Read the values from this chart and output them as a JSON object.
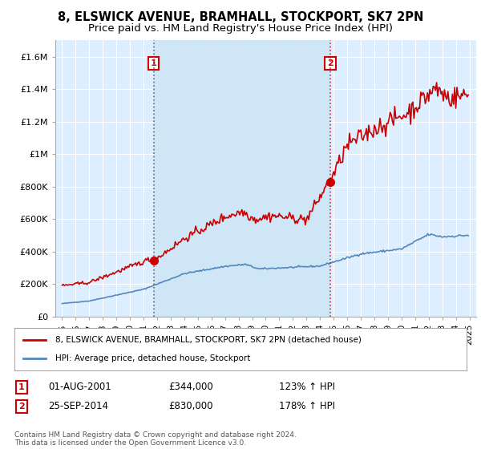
{
  "title": "8, ELSWICK AVENUE, BRAMHALL, STOCKPORT, SK7 2PN",
  "subtitle": "Price paid vs. HM Land Registry's House Price Index (HPI)",
  "title_fontsize": 10.5,
  "subtitle_fontsize": 9.5,
  "background_color": "#ffffff",
  "plot_bg_color": "#ddeeff",
  "grid_color": "#ffffff",
  "sale1_date": 2001.75,
  "sale1_price": 344000,
  "sale1_label": "1",
  "sale2_date": 2014.75,
  "sale2_price": 830000,
  "sale2_label": "2",
  "red_line_color": "#cc0000",
  "blue_line_color": "#5588bb",
  "marker_color": "#cc0000",
  "shade_color": "#cce0f5",
  "ylim_min": 0,
  "ylim_max": 1700000,
  "xlim_min": 1994.5,
  "xlim_max": 2025.5,
  "legend_line1": "8, ELSWICK AVENUE, BRAMHALL, STOCKPORT, SK7 2PN (detached house)",
  "legend_line2": "HPI: Average price, detached house, Stockport",
  "annotation1_date": "01-AUG-2001",
  "annotation1_price": "£344,000",
  "annotation1_hpi": "123% ↑ HPI",
  "annotation2_date": "25-SEP-2014",
  "annotation2_price": "£830,000",
  "annotation2_hpi": "178% ↑ HPI",
  "footnote": "Contains HM Land Registry data © Crown copyright and database right 2024.\nThis data is licensed under the Open Government Licence v3.0.",
  "yticks": [
    0,
    200000,
    400000,
    600000,
    800000,
    1000000,
    1200000,
    1400000,
    1600000
  ],
  "ytick_labels": [
    "£0",
    "£200K",
    "£400K",
    "£600K",
    "£800K",
    "£1M",
    "£1.2M",
    "£1.4M",
    "£1.6M"
  ]
}
